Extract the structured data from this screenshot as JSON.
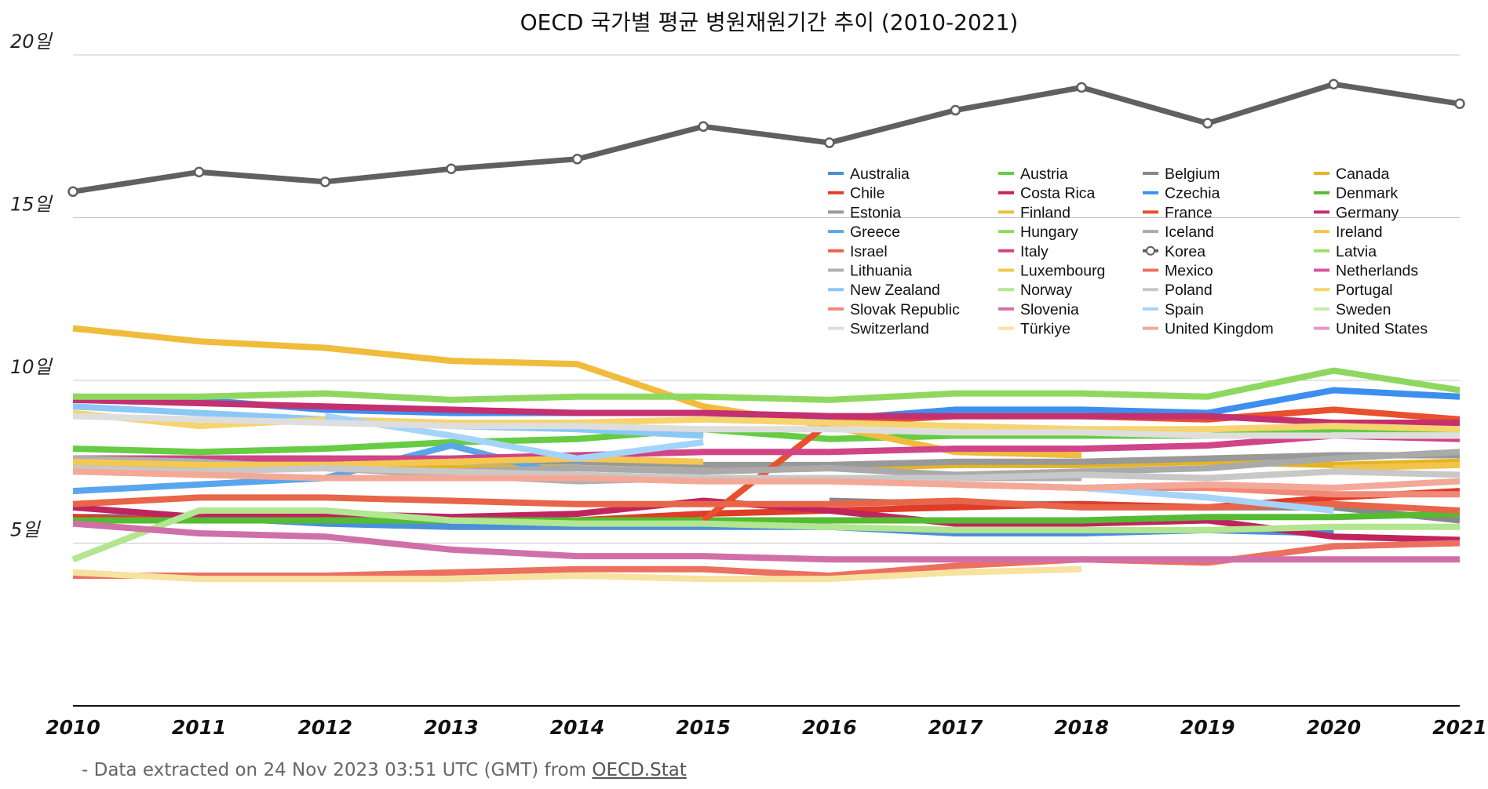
{
  "chart_data": {
    "type": "line",
    "title": "OECD 국가별 평균 병원재원기간 추이 (2010-2021)",
    "xlabel": "",
    "ylabel": "",
    "x": [
      "2010",
      "2011",
      "2012",
      "2013",
      "2014",
      "2015",
      "2016",
      "2017",
      "2018",
      "2019",
      "2020",
      "2021"
    ],
    "y_ticks": [
      {
        "value": 5,
        "label": "5일"
      },
      {
        "value": 10,
        "label": "10일"
      },
      {
        "value": 15,
        "label": "15일"
      },
      {
        "value": 20,
        "label": "20일"
      }
    ],
    "ylim": [
      0,
      20
    ],
    "grid": true,
    "legend_position": "upper-right",
    "series": [
      {
        "name": "Australia",
        "color": "#4a90d9",
        "values": [
          5.8,
          5.8,
          5.6,
          5.5,
          5.5,
          5.5,
          5.5,
          5.3,
          5.3,
          5.4,
          5.3,
          null
        ]
      },
      {
        "name": "Austria",
        "color": "#66cc44",
        "values": [
          7.9,
          7.8,
          7.9,
          8.1,
          8.2,
          8.5,
          8.2,
          8.3,
          8.3,
          8.3,
          8.5,
          8.5
        ]
      },
      {
        "name": "Belgium",
        "color": "#888888",
        "values": [
          null,
          null,
          null,
          null,
          null,
          null,
          6.3,
          6.2,
          6.2,
          6.1,
          6.1,
          5.7
        ]
      },
      {
        "name": "Canada",
        "color": "#e6b422",
        "values": [
          7.6,
          7.5,
          7.5,
          7.3,
          7.3,
          7.2,
          7.3,
          7.4,
          7.4,
          7.5,
          7.4,
          7.5
        ]
      },
      {
        "name": "Chile",
        "color": "#e03c28",
        "values": [
          5.8,
          5.7,
          5.8,
          5.7,
          5.7,
          5.9,
          6.0,
          6.1,
          6.2,
          6.1,
          6.4,
          6.6
        ]
      },
      {
        "name": "Costa Rica",
        "color": "#c0245e",
        "values": [
          6.1,
          5.8,
          5.9,
          5.8,
          5.9,
          6.3,
          6.0,
          5.6,
          5.6,
          5.7,
          5.2,
          5.1
        ]
      },
      {
        "name": "Czechia",
        "color": "#3d8fef",
        "values": [
          9.5,
          9.4,
          9.1,
          9.0,
          9.0,
          9.0,
          8.8,
          9.1,
          9.1,
          9.0,
          9.7,
          9.5
        ]
      },
      {
        "name": "Denmark",
        "color": "#55bb33",
        "values": [
          5.7,
          5.7,
          5.7,
          5.7,
          5.7,
          5.7,
          5.7,
          5.7,
          5.7,
          5.8,
          5.8,
          5.9
        ]
      },
      {
        "name": "Estonia",
        "color": "#999999",
        "values": [
          7.6,
          7.6,
          7.6,
          7.5,
          7.5,
          7.4,
          7.4,
          7.5,
          7.5,
          7.6,
          7.7,
          7.7
        ]
      },
      {
        "name": "Finland",
        "color": "#f0bc3c",
        "values": [
          11.6,
          11.2,
          11.0,
          10.6,
          10.5,
          9.2,
          8.6,
          7.8,
          7.7,
          null,
          null,
          null
        ]
      },
      {
        "name": "France",
        "color": "#e8502e",
        "values": [
          null,
          null,
          null,
          null,
          null,
          5.7,
          8.7,
          8.9,
          8.9,
          8.8,
          9.1,
          8.8
        ]
      },
      {
        "name": "Germany",
        "color": "#c43070",
        "values": [
          9.4,
          9.3,
          9.2,
          9.1,
          9.0,
          9.0,
          8.9,
          8.9,
          8.9,
          8.9,
          8.7,
          8.7
        ]
      },
      {
        "name": "Greece",
        "color": "#5aa6ec",
        "values": [
          6.6,
          6.8,
          7.0,
          8.0,
          7.0,
          7.0,
          null,
          null,
          null,
          null,
          null,
          null
        ]
      },
      {
        "name": "Hungary",
        "color": "#8ed860",
        "values": [
          9.5,
          9.5,
          9.6,
          9.4,
          9.5,
          9.5,
          9.4,
          9.6,
          9.6,
          9.5,
          10.3,
          9.7
        ]
      },
      {
        "name": "Iceland",
        "color": "#aaaaaa",
        "values": [
          7.4,
          7.3,
          7.3,
          7.2,
          7.3,
          7.2,
          7.3,
          7.1,
          7.2,
          7.3,
          7.6,
          7.8
        ]
      },
      {
        "name": "Ireland",
        "color": "#f2c44c",
        "values": [
          null,
          null,
          null,
          null,
          null,
          null,
          null,
          null,
          null,
          null,
          7.3,
          7.4
        ]
      },
      {
        "name": "Israel",
        "color": "#e8654a",
        "values": [
          6.2,
          6.4,
          6.4,
          6.3,
          6.2,
          6.2,
          6.2,
          6.3,
          6.1,
          6.1,
          6.2,
          6.0
        ]
      },
      {
        "name": "Italy",
        "color": "#d04488",
        "values": [
          7.6,
          7.6,
          7.6,
          7.6,
          7.7,
          7.8,
          7.8,
          7.9,
          7.9,
          8.0,
          8.3,
          8.2
        ]
      },
      {
        "name": "Korea",
        "color": "#606060",
        "marker": "open-circle",
        "values": [
          15.8,
          16.4,
          16.1,
          16.5,
          16.8,
          17.8,
          17.3,
          18.3,
          19.0,
          17.9,
          19.1,
          18.5
        ]
      },
      {
        "name": "Latvia",
        "color": "#9adf6a",
        "values": [
          null,
          null,
          null,
          null,
          null,
          null,
          null,
          null,
          null,
          null,
          null,
          null
        ]
      },
      {
        "name": "Lithuania",
        "color": "#b0b0b0",
        "values": [
          7.6,
          7.5,
          7.3,
          7.1,
          6.9,
          7.0,
          7.0,
          7.0,
          7.0,
          null,
          null,
          null
        ]
      },
      {
        "name": "Luxembourg",
        "color": "#f4c850",
        "values": [
          7.5,
          7.4,
          7.4,
          7.5,
          7.6,
          7.5,
          null,
          null,
          null,
          null,
          null,
          null
        ]
      },
      {
        "name": "Mexico",
        "color": "#ec7060",
        "values": [
          4.0,
          4.0,
          4.0,
          4.1,
          4.2,
          4.2,
          4.0,
          4.3,
          4.5,
          4.4,
          4.9,
          5.0
        ]
      },
      {
        "name": "Netherlands",
        "color": "#dd55a0",
        "values": [
          null,
          null,
          null,
          null,
          null,
          null,
          null,
          null,
          null,
          null,
          null,
          null
        ]
      },
      {
        "name": "New Zealand",
        "color": "#8cc8f6",
        "values": [
          9.2,
          9.0,
          8.8,
          8.6,
          8.5,
          8.3,
          null,
          null,
          null,
          null,
          null,
          null
        ]
      },
      {
        "name": "Norway",
        "color": "#b2e690",
        "values": [
          4.5,
          6.0,
          6.0,
          5.7,
          5.6,
          5.6,
          5.5,
          5.4,
          5.4,
          5.4,
          5.5,
          5.5
        ]
      },
      {
        "name": "Poland",
        "color": "#c8c8c8",
        "values": [
          7.3,
          7.2,
          7.3,
          7.2,
          7.1,
          7.0,
          7.0,
          7.0,
          7.1,
          7.0,
          7.2,
          7.1
        ]
      },
      {
        "name": "Portugal",
        "color": "#f6d470",
        "values": [
          9.0,
          8.6,
          8.8,
          8.7,
          8.7,
          8.8,
          8.7,
          8.6,
          8.5,
          8.5,
          8.6,
          8.5
        ]
      },
      {
        "name": "Slovak Republic",
        "color": "#f08a78",
        "values": [
          null,
          null,
          null,
          null,
          null,
          null,
          null,
          6.8,
          6.7,
          6.7,
          6.5,
          6.5
        ]
      },
      {
        "name": "Slovenia",
        "color": "#d070a8",
        "values": [
          5.6,
          5.3,
          5.2,
          4.8,
          4.6,
          4.6,
          4.5,
          4.5,
          4.5,
          4.5,
          4.5,
          4.5
        ]
      },
      {
        "name": "Spain",
        "color": "#a4d4fa",
        "values": [
          null,
          null,
          8.9,
          8.3,
          7.6,
          8.1,
          null,
          6.8,
          6.7,
          6.4,
          6.0,
          null
        ]
      },
      {
        "name": "Sweden",
        "color": "#c6ecac",
        "values": [
          null,
          null,
          null,
          null,
          null,
          null,
          null,
          null,
          null,
          null,
          null,
          null
        ]
      },
      {
        "name": "Switzerland",
        "color": "#dedede",
        "values": [
          8.9,
          8.8,
          8.7,
          8.6,
          8.6,
          8.5,
          8.5,
          8.4,
          8.4,
          8.3,
          8.3,
          8.3
        ]
      },
      {
        "name": "Türkiye",
        "color": "#f8e2a0",
        "values": [
          4.1,
          3.9,
          3.9,
          3.9,
          4.0,
          3.9,
          3.9,
          4.1,
          4.2,
          null,
          null,
          null
        ]
      },
      {
        "name": "United Kingdom",
        "color": "#f4a898",
        "values": [
          7.2,
          7.1,
          7.0,
          7.0,
          7.0,
          6.9,
          6.9,
          6.8,
          6.7,
          6.8,
          6.7,
          6.9
        ]
      },
      {
        "name": "United States",
        "color": "#ec96c4",
        "values": [
          null,
          null,
          null,
          null,
          null,
          null,
          null,
          null,
          null,
          null,
          null,
          null
        ]
      }
    ]
  },
  "footer": {
    "prefix": "- Data extracted on 24 Nov 2023 03:51 UTC (GMT) from ",
    "link_text": "OECD.Stat"
  }
}
